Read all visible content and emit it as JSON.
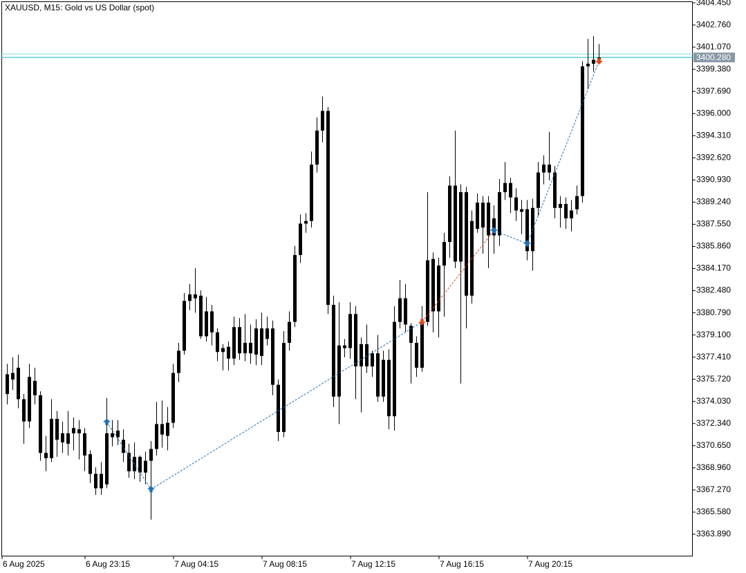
{
  "chart_data": {
    "type": "candlestick",
    "title": "XAUUSD, M15:  Gold vs US Dollar (spot)",
    "color": "#000000",
    "categories": [
      "6 Aug 2025",
      null,
      null,
      null,
      null,
      null,
      null,
      null,
      null,
      null,
      null,
      null,
      null,
      null,
      null,
      "6 Aug 23:15",
      null,
      null,
      null,
      null,
      null,
      null,
      null,
      null,
      null,
      null,
      null,
      null,
      null,
      null,
      null,
      "7 Aug 04:15",
      null,
      null,
      null,
      null,
      null,
      null,
      null,
      null,
      null,
      null,
      null,
      null,
      null,
      null,
      null,
      "7 Aug 08:15",
      null,
      null,
      null,
      null,
      null,
      null,
      null,
      null,
      null,
      null,
      null,
      null,
      null,
      null,
      null,
      "7 Aug 12:15",
      null,
      null,
      null,
      null,
      null,
      null,
      null,
      null,
      null,
      null,
      null,
      null,
      null,
      null,
      null,
      "7 Aug 16:15",
      null,
      null,
      null,
      null,
      null,
      null,
      null,
      null,
      null,
      null,
      null,
      null,
      null,
      null,
      null,
      "7 Aug 20:15",
      null,
      null,
      null,
      null,
      null,
      null,
      null,
      null,
      null,
      null,
      null,
      null
    ],
    "open": [
      3376.1,
      3375.7,
      3376.6,
      3374.2,
      3372.5,
      3375.6,
      3374.5,
      3370.1,
      3369.7,
      3372.7,
      3370.9,
      3371.6,
      3371.6,
      3371.9,
      3371.6,
      3370.0,
      3368.5,
      3367.4,
      3367.7,
      3371.6,
      3371.3,
      3371.1,
      3370.1,
      3368.7,
      3369.8,
      3368.6,
      3369.5,
      3370.4,
      3372.3,
      3371.4,
      3372.4,
      3376.2,
      3377.9,
      3381.7,
      3382.2,
      3382.1,
      3379.0,
      3380.9,
      3379.3,
      3377.8,
      3378.2,
      3377.3,
      3379.7,
      3377.7,
      3378.5,
      3377.6,
      3379.6,
      3378.8,
      3379.6,
      3375.3,
      3371.7,
      3378.5,
      3380.1,
      3385.2,
      3387.6,
      3387.8,
      3392.1,
      3394.7,
      3396.2,
      3381.4,
      3374.4,
      3378.3,
      3378.1,
      3380.7,
      3376.7,
      3378.4,
      3376.7,
      3377.7,
      3374.4,
      3377.2,
      3372.9,
      3380.1,
      3381.9,
      3379.8,
      3378.5,
      3376.6,
      3380.1,
      3384.9,
      3380.9,
      3384.4,
      3386.2,
      3390.5,
      3384.7,
      3390.0,
      3382.1,
      3387.2,
      3389.2,
      3386.7,
      3388.0,
      3386.7,
      3390.0,
      3390.7,
      3389.6,
      3388.7,
      3388.7,
      3385.5,
      3388.8,
      3391.5,
      3392.1,
      3391.5,
      3388.8,
      3389.1,
      3388.0,
      3388.7,
      3389.7,
      3399.6,
      3399.8,
      3400.1
    ],
    "high": [
      3376.9,
      3377.4,
      3377.6,
      3374.6,
      3376.9,
      3376.6,
      3374.8,
      3371.4,
      3374.2,
      3373.3,
      3372.5,
      3373.3,
      3372.8,
      3372.6,
      3372.0,
      3370.3,
      3369.0,
      3369.4,
      3374.3,
      3372.6,
      3372.6,
      3371.9,
      3370.8,
      3370.9,
      3369.9,
      3370.2,
      3371.0,
      3374.0,
      3374.1,
      3373.6,
      3376.9,
      3378.5,
      3382.3,
      3383.0,
      3384.2,
      3382.5,
      3382.0,
      3381.4,
      3379.6,
      3378.4,
      3378.6,
      3380.5,
      3380.4,
      3380.7,
      3379.9,
      3380.3,
      3380.8,
      3380.5,
      3380.2,
      3375.7,
      3379.4,
      3380.9,
      3385.9,
      3388.3,
      3388.4,
      3393.1,
      3395.7,
      3397.3,
      3396.5,
      3382.1,
      3381.6,
      3378.8,
      3381.6,
      3381.3,
      3378.9,
      3379.9,
      3377.9,
      3379.1,
      3377.9,
      3378.0,
      3381.3,
      3383.3,
      3383.0,
      3380.0,
      3379.0,
      3381.3,
      3390.0,
      3385.4,
      3385.0,
      3386.9,
      3391.2,
      3394.7,
      3390.6,
      3390.4,
      3388.6,
      3389.9,
      3389.7,
      3389.7,
      3389.0,
      3391.0,
      3392.3,
      3391.1,
      3390.3,
      3389.4,
      3389.4,
      3389.5,
      3392.3,
      3392.8,
      3394.6,
      3392.0,
      3389.7,
      3389.6,
      3389.4,
      3390.5,
      3400.0,
      3401.7,
      3401.9,
      3401.3
    ],
    "low": [
      3373.8,
      3374.9,
      3373.5,
      3370.8,
      3372.0,
      3373.8,
      3369.5,
      3368.7,
      3369.4,
      3369.8,
      3370.1,
      3369.9,
      3370.3,
      3369.6,
      3368.7,
      3367.8,
      3366.9,
      3366.9,
      3367.4,
      3370.6,
      3370.7,
      3369.4,
      3368.2,
      3368.1,
      3367.9,
      3367.7,
      3365.0,
      3369.9,
      3370.5,
      3370.3,
      3372.0,
      3375.5,
      3377.6,
      3381.0,
      3380.8,
      3378.8,
      3378.6,
      3378.3,
      3377.1,
      3376.4,
      3376.4,
      3376.8,
      3377.2,
      3377.1,
      3376.9,
      3376.8,
      3376.8,
      3378.3,
      3374.5,
      3371.0,
      3371.3,
      3377.9,
      3379.7,
      3384.6,
      3386.9,
      3387.3,
      3391.5,
      3393.8,
      3380.7,
      3373.6,
      3372.3,
      3377.4,
      3377.3,
      3374.2,
      3373.2,
      3376.2,
      3375.9,
      3374.0,
      3374.0,
      3371.9,
      3371.8,
      3379.6,
      3379.3,
      3375.4,
      3375.9,
      3376.3,
      3379.8,
      3379.3,
      3378.9,
      3380.5,
      3385.0,
      3384.2,
      3375.4,
      3379.6,
      3381.5,
      3386.9,
      3385.3,
      3384.2,
      3385.3,
      3385.9,
      3389.4,
      3388.4,
      3387.8,
      3386.8,
      3384.8,
      3384.0,
      3388.2,
      3390.6,
      3390.9,
      3388.0,
      3387.3,
      3387.2,
      3387.0,
      3388.3,
      3389.2,
      3397.9,
      3399.2,
      3400.0
    ],
    "close": [
      3374.6,
      3376.2,
      3374.2,
      3372.5,
      3375.9,
      3374.5,
      3370.1,
      3369.7,
      3372.7,
      3371.1,
      3371.6,
      3370.8,
      3372.0,
      3371.6,
      3369.9,
      3368.5,
      3367.4,
      3368.5,
      3371.6,
      3371.3,
      3371.8,
      3370.1,
      3368.7,
      3369.8,
      3368.6,
      3369.5,
      3370.4,
      3372.3,
      3371.5,
      3372.4,
      3376.2,
      3377.9,
      3381.7,
      3382.2,
      3381.9,
      3379.0,
      3380.9,
      3379.3,
      3377.8,
      3378.1,
      3377.3,
      3379.7,
      3377.7,
      3378.5,
      3377.7,
      3379.6,
      3377.5,
      3379.6,
      3375.3,
      3371.7,
      3378.5,
      3380.1,
      3385.2,
      3387.6,
      3387.8,
      3392.1,
      3394.7,
      3396.2,
      3381.4,
      3374.4,
      3378.3,
      3378.1,
      3380.7,
      3376.7,
      3378.4,
      3376.7,
      3377.7,
      3374.4,
      3377.2,
      3372.9,
      3380.1,
      3381.9,
      3379.9,
      3378.5,
      3376.6,
      3380.1,
      3384.8,
      3380.9,
      3384.4,
      3386.2,
      3390.5,
      3384.7,
      3390.0,
      3382.1,
      3387.8,
      3389.2,
      3387.3,
      3389.2,
      3386.7,
      3390.0,
      3390.7,
      3389.6,
      3388.6,
      3388.5,
      3385.5,
      3388.8,
      3391.5,
      3392.1,
      3391.5,
      3388.8,
      3389.1,
      3388.0,
      3388.6,
      3389.7,
      3399.6,
      3399.8,
      3400.1,
      3400.28
    ],
    "buy_color": "#1f6fb5",
    "sell_color": "#e2461c",
    "buy_deals": [
      null,
      null,
      null,
      null,
      null,
      null,
      null,
      null,
      null,
      null,
      null,
      null,
      null,
      null,
      null,
      null,
      null,
      null,
      3372.45,
      null,
      null,
      null,
      null,
      null,
      null,
      null,
      3367.32,
      null,
      null,
      null,
      null,
      null,
      null,
      null,
      null,
      null,
      null,
      null,
      null,
      null,
      null,
      null,
      null,
      null,
      null,
      null,
      null,
      null,
      null,
      null,
      null,
      null,
      null,
      null,
      null,
      null,
      null,
      null,
      null,
      null,
      null,
      null,
      null,
      null,
      null,
      null,
      null,
      null,
      null,
      null,
      null,
      null,
      null,
      null,
      null,
      null,
      null,
      null,
      null,
      null,
      null,
      null,
      null,
      null,
      null,
      null,
      null,
      null,
      3387.07,
      null,
      null,
      null,
      null,
      null,
      3386.07,
      null,
      null,
      null,
      null,
      null,
      null,
      null,
      null,
      null,
      null,
      null,
      null,
      null
    ],
    "sell_deals": [
      null,
      null,
      null,
      null,
      null,
      null,
      null,
      null,
      null,
      null,
      null,
      null,
      null,
      null,
      null,
      null,
      null,
      null,
      null,
      null,
      null,
      null,
      null,
      null,
      null,
      null,
      null,
      null,
      null,
      null,
      null,
      null,
      null,
      null,
      null,
      null,
      null,
      null,
      null,
      null,
      null,
      null,
      null,
      null,
      null,
      null,
      null,
      null,
      null,
      null,
      null,
      null,
      null,
      null,
      null,
      null,
      null,
      null,
      null,
      null,
      null,
      null,
      null,
      null,
      null,
      null,
      null,
      null,
      null,
      null,
      null,
      null,
      null,
      null,
      null,
      3380.1,
      null,
      null,
      null,
      null,
      null,
      null,
      null,
      null,
      null,
      null,
      null,
      null,
      null,
      null,
      null,
      null,
      null,
      null,
      null,
      null,
      null,
      null,
      null,
      null,
      null,
      null,
      null,
      null,
      null,
      null,
      null,
      3400.01
    ],
    "price_lines": [
      {
        "value": 3400.54,
        "color": "#8fdce6"
      },
      {
        "value": 3400.28,
        "label": "3400.280",
        "color": "#3fc4d6"
      }
    ],
    "ylim": [
      3362.2,
      3404.56
    ],
    "yticks": [
      {
        "value": 3363.89,
        "label": "3363.890"
      },
      {
        "value": 3365.58,
        "label": "3365.580"
      },
      {
        "value": 3367.27,
        "label": "3367.270"
      },
      {
        "value": 3368.96,
        "label": "3368.960"
      },
      {
        "value": 3370.65,
        "label": "3370.650"
      },
      {
        "value": 3372.34,
        "label": "3372.340"
      },
      {
        "value": 3374.03,
        "label": "3374.030"
      },
      {
        "value": 3375.72,
        "label": "3375.720"
      },
      {
        "value": 3377.41,
        "label": "3377.410"
      },
      {
        "value": 3379.1,
        "label": "3379.100"
      },
      {
        "value": 3380.79,
        "label": "3380.790"
      },
      {
        "value": 3382.48,
        "label": "3382.480"
      },
      {
        "value": 3384.17,
        "label": "3384.170"
      },
      {
        "value": 3385.86,
        "label": "3385.860"
      },
      {
        "value": 3387.55,
        "label": "3387.550"
      },
      {
        "value": 3389.24,
        "label": "3389.240"
      },
      {
        "value": 3390.93,
        "label": "3390.930"
      },
      {
        "value": 3392.62,
        "label": "3392.620"
      },
      {
        "value": 3394.31,
        "label": "3394.310"
      },
      {
        "value": 3396,
        "label": "3396.000"
      },
      {
        "value": 3397.69,
        "label": "3397.690"
      },
      {
        "value": 3399.38,
        "label": "3399.380"
      },
      {
        "value": 3401.07,
        "label": "3401.070"
      },
      {
        "value": 3402.76,
        "label": "3402.760"
      },
      {
        "value": 3404.45,
        "label": "3404.450"
      }
    ],
    "grid": false
  }
}
